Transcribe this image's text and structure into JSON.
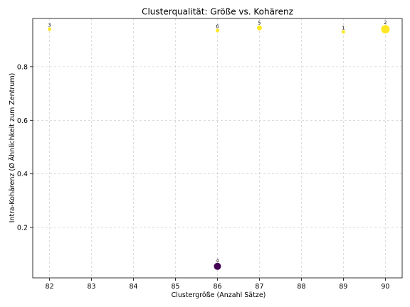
{
  "chart_data": {
    "type": "scatter",
    "title": "Clusterqualität: Größe vs. Kohärenz",
    "xlabel": "Clustergröße (Anzahl Sätze)",
    "ylabel": "Intra-Kohärenz (Ø Ähnlichkeit zum Zentrum)",
    "xlim": [
      81.6,
      90.4
    ],
    "ylim": [
      0.012,
      0.98
    ],
    "xticks": [
      "82",
      "83",
      "84",
      "85",
      "86",
      "87",
      "88",
      "89",
      "90"
    ],
    "yticks": [
      "0.2",
      "0.4",
      "0.6",
      "0.8"
    ],
    "grid": true,
    "colors": {
      "high": "#fde725",
      "low": "#440154"
    },
    "points": [
      {
        "label": "1",
        "x": 89,
        "y": 0.93,
        "size": 5,
        "color": "#fde725"
      },
      {
        "label": "2",
        "x": 90,
        "y": 0.94,
        "size": 12,
        "color": "#fde725"
      },
      {
        "label": "3",
        "x": 82,
        "y": 0.94,
        "size": 5,
        "color": "#fde725"
      },
      {
        "label": "4",
        "x": 86,
        "y": 0.055,
        "size": 10,
        "color": "#440154"
      },
      {
        "label": "5",
        "x": 87,
        "y": 0.945,
        "size": 7,
        "color": "#fde725"
      },
      {
        "label": "6",
        "x": 86,
        "y": 0.935,
        "size": 5,
        "color": "#fde725"
      }
    ]
  }
}
